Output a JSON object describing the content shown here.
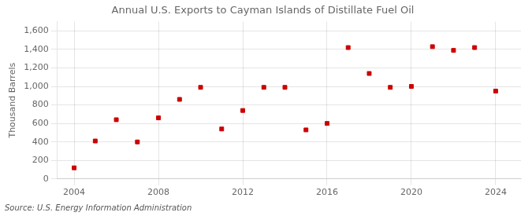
{
  "chart_data": {
    "type": "scatter",
    "title": "Annual U.S. Exports to Cayman Islands of Distillate Fuel Oil",
    "ylabel": "Thousand Barrels",
    "annotations": [
      "Source: U.S. Energy Information Administration"
    ],
    "x": [
      2004,
      2005,
      2006,
      2007,
      2008,
      2009,
      2010,
      2011,
      2012,
      2013,
      2014,
      2015,
      2016,
      2017,
      2018,
      2019,
      2020,
      2021,
      2022,
      2023,
      2024
    ],
    "values": [
      120,
      410,
      640,
      400,
      660,
      860,
      990,
      540,
      740,
      990,
      990,
      530,
      600,
      1420,
      1140,
      990,
      1000,
      1430,
      1390,
      1420,
      950
    ],
    "color": "#cc0000",
    "marker": "square",
    "xlim": [
      2003.2,
      2025.2
    ],
    "ylim": [
      0,
      1700
    ],
    "xticks": [
      2004,
      2008,
      2012,
      2016,
      2020,
      2024
    ],
    "yticks": [
      0,
      200,
      400,
      600,
      800,
      {
        "value": 1000,
        "label": "1,000"
      },
      {
        "value": 1200,
        "label": "1,200"
      },
      {
        "value": 1400,
        "label": "1,400"
      },
      {
        "value": 1600,
        "label": "1,600"
      }
    ],
    "grid": true
  }
}
